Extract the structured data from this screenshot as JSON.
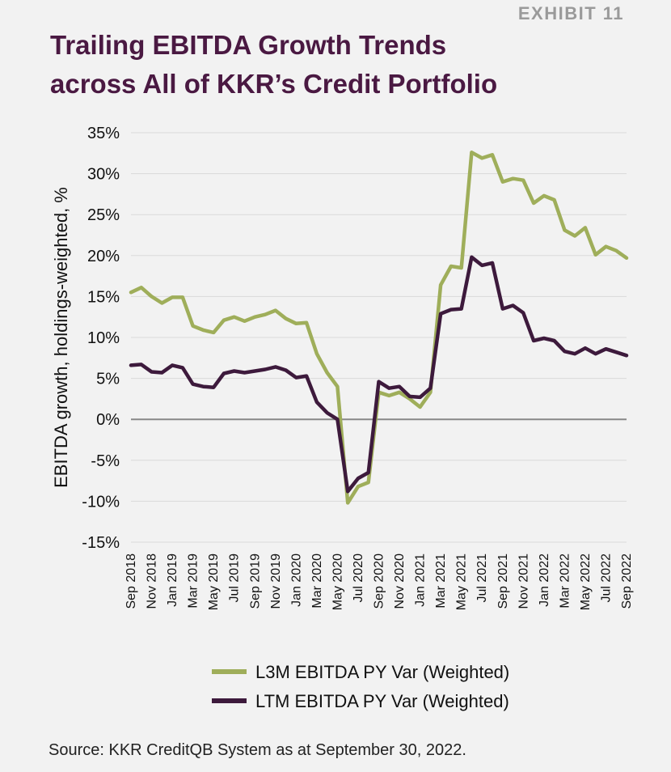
{
  "header": {
    "exhibit": "EXHIBIT 11",
    "title_line1": "Trailing EBITDA Growth Trends",
    "title_line2": "across All of KKR’s Credit Portfolio"
  },
  "source": "Source: KKR CreditQB System as at September 30, 2022.",
  "colors": {
    "l3m": "#9fae5a",
    "ltm": "#3d1a3c",
    "zero_line": "#888888",
    "grid": "#d9d9d9"
  },
  "chart_data": {
    "type": "line",
    "title": "Trailing EBITDA Growth Trends across All of KKR’s Credit Portfolio",
    "xlabel": "",
    "ylabel": "EBITDA growth, holdings-weighted, %",
    "ylim": [
      -15,
      35
    ],
    "yticks": [
      35,
      30,
      25,
      20,
      15,
      10,
      5,
      0,
      -5,
      -10,
      -15
    ],
    "ytick_labels": [
      "35%",
      "30%",
      "25%",
      "20%",
      "15%",
      "10%",
      "5%",
      "0%",
      "-5%",
      "-10%",
      "-15%"
    ],
    "grid": true,
    "legend_position": "bottom",
    "x_tick_labels": [
      "Sep 2018",
      "Nov 2018",
      "Jan 2019",
      "Mar 2019",
      "May 2019",
      "Jul 2019",
      "Sep 2019",
      "Nov 2019",
      "Jan 2020",
      "Mar 2020",
      "May 2020",
      "Jul 2020",
      "Sep 2020",
      "Nov 2020",
      "Jan 2021",
      "Mar 2021",
      "May 2021",
      "Jul 2021",
      "Sep 2021",
      "Nov 2021",
      "Jan 2022",
      "Mar 2022",
      "May 2022",
      "Jul 2022",
      "Sep 2022"
    ],
    "categories": [
      "Sep 2018",
      "Oct 2018",
      "Nov 2018",
      "Dec 2018",
      "Jan 2019",
      "Feb 2019",
      "Mar 2019",
      "Apr 2019",
      "May 2019",
      "Jun 2019",
      "Jul 2019",
      "Aug 2019",
      "Sep 2019",
      "Oct 2019",
      "Nov 2019",
      "Dec 2019",
      "Jan 2020",
      "Feb 2020",
      "Mar 2020",
      "Apr 2020",
      "May 2020",
      "Jun 2020",
      "Jul 2020",
      "Aug 2020",
      "Sep 2020",
      "Oct 2020",
      "Nov 2020",
      "Dec 2020",
      "Jan 2021",
      "Feb 2021",
      "Mar 2021",
      "Apr 2021",
      "May 2021",
      "Jun 2021",
      "Jul 2021",
      "Aug 2021",
      "Sep 2021",
      "Oct 2021",
      "Nov 2021",
      "Dec 2021",
      "Jan 2022",
      "Feb 2022",
      "Mar 2022",
      "Apr 2022",
      "May 2022",
      "Jun 2022",
      "Jul 2022",
      "Aug 2022",
      "Sep 2022"
    ],
    "series": [
      {
        "name": "L3M EBITDA PY Var (Weighted)",
        "color": "#9fae5a",
        "values": [
          15.5,
          16.1,
          15.0,
          14.2,
          14.9,
          14.9,
          11.4,
          10.9,
          10.6,
          12.1,
          12.5,
          12.0,
          12.5,
          12.8,
          13.3,
          12.3,
          11.7,
          11.8,
          8.0,
          5.7,
          4.0,
          -10.2,
          -8.2,
          -7.7,
          3.3,
          2.9,
          3.3,
          2.5,
          1.5,
          3.3,
          16.4,
          18.7,
          18.5,
          32.6,
          31.9,
          32.3,
          29.0,
          29.4,
          29.2,
          26.4,
          27.3,
          26.8,
          23.1,
          22.4,
          23.4,
          20.1,
          21.1,
          20.6,
          19.7
        ]
      },
      {
        "name": "LTM EBITDA PY Var (Weighted)",
        "color": "#3d1a3c",
        "values": [
          6.6,
          6.7,
          5.8,
          5.7,
          6.6,
          6.3,
          4.3,
          4.0,
          3.9,
          5.6,
          5.9,
          5.7,
          5.9,
          6.1,
          6.4,
          6.0,
          5.1,
          5.3,
          2.1,
          0.8,
          0.0,
          -8.8,
          -7.2,
          -6.5,
          4.6,
          3.8,
          4.0,
          2.8,
          2.7,
          3.8,
          12.9,
          13.4,
          13.5,
          19.8,
          18.8,
          19.1,
          13.5,
          13.9,
          13.0,
          9.6,
          9.9,
          9.6,
          8.3,
          8.0,
          8.7,
          8.0,
          8.6,
          8.2,
          7.8
        ]
      }
    ]
  }
}
